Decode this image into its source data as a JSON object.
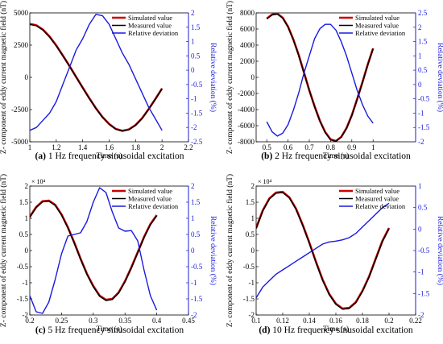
{
  "chart_data": [
    {
      "type": "line",
      "caption_tag": "(a)",
      "caption_text": " 1 Hz frequency sinusoidal excitation",
      "xlabel": "Time (s)",
      "ylabel": "Z- component of eddy current magnetic field (nT)",
      "y2label": "Relative deviation (%)",
      "exponent": "",
      "xlim": [
        1,
        2.2
      ],
      "xticks": [
        1,
        1.2,
        1.4,
        1.6,
        1.8,
        2,
        2.2
      ],
      "xtick_labels": [
        "1",
        "1.2",
        "1.4",
        "1.6",
        "1.8",
        "2",
        "2.2"
      ],
      "ylim": [
        -5000,
        5000
      ],
      "yticks": [
        -5000,
        -2500,
        0,
        2500,
        5000
      ],
      "ytick_labels": [
        "-5000",
        "-2500",
        "0",
        "2500",
        "5000"
      ],
      "y2lim": [
        -2.5,
        2
      ],
      "y2ticks": [
        -2.5,
        -2,
        -1.5,
        -1,
        -0.5,
        0,
        0.5,
        1,
        1.5,
        2
      ],
      "y2tick_labels": [
        "-2.5",
        "-2",
        "-1.5",
        "-1",
        "-0.5",
        "0",
        "0.5",
        "1",
        "1.5",
        "2"
      ],
      "legend": [
        "Simulated value",
        "Measured value",
        "Relative deviation"
      ],
      "series": [
        {
          "name": "Simulated value",
          "axis": "left",
          "color": "#cc0000",
          "x": [
            1.0,
            1.05,
            1.1,
            1.15,
            1.2,
            1.25,
            1.3,
            1.35,
            1.4,
            1.45,
            1.5,
            1.55,
            1.6,
            1.65,
            1.7,
            1.75,
            1.8,
            1.85,
            1.9,
            1.95,
            2.0
          ],
          "y": [
            4150,
            4040,
            3700,
            3160,
            2480,
            1700,
            880,
            40,
            -800,
            -1620,
            -2400,
            -3080,
            -3620,
            -4000,
            -4150,
            -4040,
            -3700,
            -3160,
            -2450,
            -1670,
            -860
          ]
        },
        {
          "name": "Measured value",
          "axis": "left",
          "color": "#000000",
          "x": [
            1.0,
            1.05,
            1.1,
            1.15,
            1.2,
            1.25,
            1.3,
            1.35,
            1.4,
            1.45,
            1.5,
            1.55,
            1.6,
            1.65,
            1.7,
            1.75,
            1.8,
            1.85,
            1.9,
            1.95,
            2.0
          ],
          "y": [
            4100,
            4000,
            3660,
            3120,
            2440,
            1670,
            860,
            20,
            -820,
            -1640,
            -2420,
            -3100,
            -3640,
            -4020,
            -4170,
            -4060,
            -3720,
            -3180,
            -2470,
            -1690,
            -880
          ]
        },
        {
          "name": "Relative deviation",
          "axis": "right",
          "color": "#1a1adf",
          "x": [
            1.0,
            1.05,
            1.1,
            1.15,
            1.2,
            1.25,
            1.3,
            1.35,
            1.4,
            1.45,
            1.5,
            1.55,
            1.6,
            1.65,
            1.7,
            1.75,
            1.8,
            1.85,
            1.9,
            1.95,
            2.0
          ],
          "y": [
            -2.1,
            -2.0,
            -1.75,
            -1.5,
            -1.1,
            -0.5,
            0.1,
            0.7,
            1.1,
            1.6,
            1.95,
            1.9,
            1.6,
            1.1,
            0.6,
            0.2,
            -0.3,
            -0.8,
            -1.3,
            -1.7,
            -2.1
          ]
        }
      ]
    },
    {
      "type": "line",
      "caption_tag": "(b)",
      "caption_text": " 2 Hz frequency sinusoidal excitation",
      "xlabel": "Time (s)",
      "ylabel": "Z- component of eddy current magnetic field (nT)",
      "y2label": "Relative deviation (%)",
      "exponent": "",
      "xlim": [
        0.45,
        1.2
      ],
      "xticks": [
        0.5,
        0.6,
        0.7,
        0.8,
        0.9,
        1
      ],
      "xtick_labels": [
        "0.5",
        "0.6",
        "0.7",
        "0.8",
        "0.9",
        "1"
      ],
      "ylim": [
        -8000,
        8000
      ],
      "yticks": [
        -8000,
        -6000,
        -4000,
        -2000,
        0,
        2000,
        4000,
        6000,
        8000
      ],
      "ytick_labels": [
        "-8000",
        "-6000",
        "-4000",
        "-2000",
        "0",
        "2000",
        "4000",
        "6000",
        "8000"
      ],
      "y2lim": [
        -2,
        2.5
      ],
      "y2ticks": [
        -2,
        -1.5,
        -1,
        -0.5,
        0,
        0.5,
        1,
        1.5,
        2,
        2.5
      ],
      "y2tick_labels": [
        "-2",
        "-1.5",
        "-1",
        "-0.5",
        "0",
        "0.5",
        "1",
        "1.5",
        "2",
        "2.5"
      ],
      "legend": [
        "Simulated value",
        "Measured value",
        "Relative deviation"
      ],
      "series": [
        {
          "name": "Simulated value",
          "axis": "left",
          "color": "#cc0000",
          "x": [
            0.5,
            0.525,
            0.55,
            0.575,
            0.6,
            0.625,
            0.65,
            0.675,
            0.7,
            0.725,
            0.75,
            0.775,
            0.8,
            0.825,
            0.85,
            0.875,
            0.9,
            0.925,
            0.95,
            0.975,
            1.0
          ],
          "y": [
            7300,
            7800,
            7900,
            7400,
            6300,
            4700,
            2800,
            600,
            -1600,
            -3600,
            -5400,
            -6800,
            -7700,
            -7900,
            -7400,
            -6300,
            -4700,
            -2700,
            -600,
            1600,
            3600
          ]
        },
        {
          "name": "Measured value",
          "axis": "left",
          "color": "#000000",
          "x": [
            0.5,
            0.525,
            0.55,
            0.575,
            0.6,
            0.625,
            0.65,
            0.675,
            0.7,
            0.725,
            0.75,
            0.775,
            0.8,
            0.825,
            0.85,
            0.875,
            0.9,
            0.925,
            0.95,
            0.975,
            1.0
          ],
          "y": [
            7250,
            7750,
            7850,
            7350,
            6250,
            4650,
            2750,
            550,
            -1650,
            -3650,
            -5450,
            -6850,
            -7750,
            -7950,
            -7450,
            -6350,
            -4750,
            -2750,
            -650,
            1550,
            3550
          ]
        },
        {
          "name": "Relative deviation",
          "axis": "right",
          "color": "#1a1adf",
          "x": [
            0.5,
            0.525,
            0.55,
            0.575,
            0.6,
            0.625,
            0.65,
            0.675,
            0.7,
            0.725,
            0.75,
            0.775,
            0.8,
            0.825,
            0.85,
            0.875,
            0.9,
            0.925,
            0.95,
            0.975,
            1.0
          ],
          "y": [
            -1.3,
            -1.65,
            -1.8,
            -1.7,
            -1.4,
            -0.9,
            -0.3,
            0.4,
            1.0,
            1.6,
            1.95,
            2.1,
            2.1,
            1.9,
            1.5,
            1.0,
            0.4,
            -0.2,
            -0.7,
            -1.1,
            -1.35
          ]
        }
      ]
    },
    {
      "type": "line",
      "caption_tag": "(c)",
      "caption_text": " 5 Hz frequency sinusoidal excitation",
      "xlabel": "Time (s)",
      "ylabel": "Z- component of eddy current magnetic field (nT)",
      "y2label": "Relative deviation (%)",
      "exponent": "× 10⁴",
      "xlim": [
        0.2,
        0.45
      ],
      "xticks": [
        0.2,
        0.25,
        0.3,
        0.35,
        0.4,
        0.45
      ],
      "xtick_labels": [
        "0.2",
        "0.25",
        "0.3",
        "0.35",
        "0.4",
        "0.45"
      ],
      "ylim": [
        -2,
        2
      ],
      "yticks": [
        -2,
        -1.5,
        -1,
        -0.5,
        0,
        0.5,
        1,
        1.5,
        2
      ],
      "ytick_labels": [
        "-2",
        "-1.5",
        "-1",
        "-0.5",
        "0",
        "0.5",
        "1",
        "1.5",
        "2"
      ],
      "y2lim": [
        -2,
        2
      ],
      "y2ticks": [
        -2,
        -1.5,
        -1,
        -0.5,
        0,
        0.5,
        1,
        1.5,
        2
      ],
      "y2tick_labels": [
        "-2",
        "-1.5",
        "-1",
        "-0.5",
        "0",
        "0.5",
        "1",
        "1.5",
        "2"
      ],
      "legend": [
        "Simulated value",
        "Measured value",
        "Relative deviation"
      ],
      "series": [
        {
          "name": "Simulated value",
          "axis": "left",
          "color": "#cc0000",
          "x": [
            0.2,
            0.21,
            0.22,
            0.23,
            0.24,
            0.25,
            0.26,
            0.27,
            0.28,
            0.29,
            0.3,
            0.31,
            0.32,
            0.33,
            0.34,
            0.35,
            0.36,
            0.37,
            0.38,
            0.39,
            0.4
          ],
          "y": [
            1.05,
            1.35,
            1.53,
            1.55,
            1.42,
            1.12,
            0.72,
            0.25,
            -0.25,
            -0.72,
            -1.1,
            -1.4,
            -1.53,
            -1.5,
            -1.3,
            -0.95,
            -0.52,
            -0.05,
            0.42,
            0.82,
            1.1
          ]
        },
        {
          "name": "Measured value",
          "axis": "left",
          "color": "#000000",
          "x": [
            0.2,
            0.21,
            0.22,
            0.23,
            0.24,
            0.25,
            0.26,
            0.27,
            0.28,
            0.29,
            0.3,
            0.31,
            0.32,
            0.33,
            0.34,
            0.35,
            0.36,
            0.37,
            0.38,
            0.39,
            0.4
          ],
          "y": [
            1.03,
            1.33,
            1.51,
            1.53,
            1.4,
            1.1,
            0.7,
            0.23,
            -0.27,
            -0.74,
            -1.12,
            -1.42,
            -1.55,
            -1.52,
            -1.32,
            -0.97,
            -0.54,
            -0.07,
            0.4,
            0.8,
            1.08
          ]
        },
        {
          "name": "Relative deviation",
          "axis": "right",
          "color": "#1a1adf",
          "x": [
            0.2,
            0.21,
            0.22,
            0.23,
            0.24,
            0.25,
            0.26,
            0.27,
            0.28,
            0.29,
            0.3,
            0.31,
            0.32,
            0.33,
            0.34,
            0.35,
            0.36,
            0.37,
            0.38,
            0.39,
            0.4
          ],
          "y": [
            -1.4,
            -1.9,
            -1.95,
            -1.6,
            -0.9,
            -0.1,
            0.45,
            0.5,
            0.55,
            0.9,
            1.5,
            1.95,
            1.8,
            1.2,
            0.7,
            0.6,
            0.62,
            0.3,
            -0.6,
            -1.4,
            -1.85
          ]
        }
      ]
    },
    {
      "type": "line",
      "caption_tag": "(d)",
      "caption_text": " 10 Hz frequency sinusoidal excitation",
      "xlabel": "Time (s)",
      "ylabel": "Z- component of eddy current magnetic field (nT)",
      "y2label": "Relative deviation (%)",
      "exponent": "× 10⁴",
      "xlim": [
        0.1,
        0.22
      ],
      "xticks": [
        0.1,
        0.12,
        0.14,
        0.16,
        0.18,
        0.2,
        0.22
      ],
      "xtick_labels": [
        "0.1",
        "0.12",
        "0.14",
        "0.16",
        "0.18",
        "0.2",
        "0.22"
      ],
      "ylim": [
        -2,
        2
      ],
      "yticks": [
        -2,
        -1.5,
        -1,
        -0.5,
        0,
        0.5,
        1,
        1.5,
        2
      ],
      "ytick_labels": [
        "-2",
        "-1.5",
        "-1",
        "-0.5",
        "0",
        "0.5",
        "1",
        "1.5",
        "2"
      ],
      "y2lim": [
        -2,
        1
      ],
      "y2ticks": [
        -2,
        -1.5,
        -1,
        -0.5,
        0,
        0.5,
        1
      ],
      "y2tick_labels": [
        "-2",
        "-1.5",
        "-1",
        "-0.5",
        "0",
        "0.5",
        "1"
      ],
      "legend": [
        "Simulated value",
        "Measured value",
        "Relative deviation"
      ],
      "series": [
        {
          "name": "Simulated value",
          "axis": "left",
          "color": "#cc0000",
          "x": [
            0.1,
            0.105,
            0.11,
            0.115,
            0.12,
            0.125,
            0.13,
            0.135,
            0.14,
            0.145,
            0.15,
            0.155,
            0.16,
            0.165,
            0.17,
            0.175,
            0.18,
            0.185,
            0.19,
            0.195,
            0.2
          ],
          "y": [
            0.7,
            1.25,
            1.62,
            1.8,
            1.82,
            1.65,
            1.3,
            0.8,
            0.25,
            -0.35,
            -0.9,
            -1.35,
            -1.65,
            -1.8,
            -1.78,
            -1.6,
            -1.25,
            -0.8,
            -0.25,
            0.3,
            0.7
          ]
        },
        {
          "name": "Measured value",
          "axis": "left",
          "color": "#000000",
          "x": [
            0.1,
            0.105,
            0.11,
            0.115,
            0.12,
            0.125,
            0.13,
            0.135,
            0.14,
            0.145,
            0.15,
            0.155,
            0.16,
            0.165,
            0.17,
            0.175,
            0.18,
            0.185,
            0.19,
            0.195,
            0.2
          ],
          "y": [
            0.68,
            1.23,
            1.6,
            1.78,
            1.8,
            1.63,
            1.28,
            0.78,
            0.23,
            -0.37,
            -0.92,
            -1.37,
            -1.67,
            -1.82,
            -1.8,
            -1.62,
            -1.27,
            -0.82,
            -0.27,
            0.28,
            0.68
          ]
        },
        {
          "name": "Relative deviation",
          "axis": "right",
          "color": "#1a1adf",
          "x": [
            0.1,
            0.105,
            0.11,
            0.115,
            0.12,
            0.125,
            0.13,
            0.135,
            0.14,
            0.145,
            0.15,
            0.155,
            0.16,
            0.165,
            0.17,
            0.175,
            0.18,
            0.185,
            0.19,
            0.195,
            0.2
          ],
          "y": [
            -1.6,
            -1.35,
            -1.2,
            -1.05,
            -0.95,
            -0.85,
            -0.75,
            -0.65,
            -0.55,
            -0.45,
            -0.35,
            -0.3,
            -0.28,
            -0.25,
            -0.2,
            -0.1,
            0.05,
            0.2,
            0.35,
            0.5,
            0.6
          ]
        }
      ]
    }
  ]
}
